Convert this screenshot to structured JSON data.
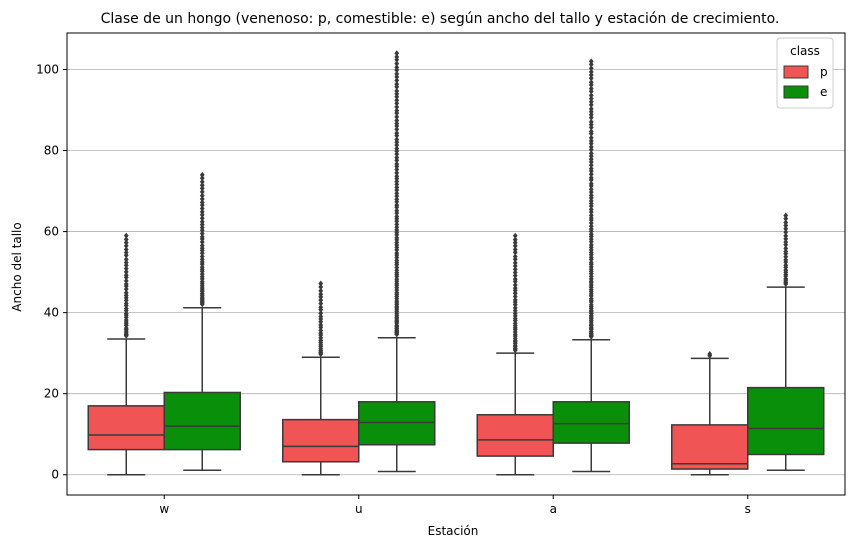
{
  "chart_data": {
    "type": "box",
    "title": "Clase de un hongo (venenoso: p, comestible: e) según ancho del tallo y estación de crecimiento.",
    "xlabel": "Estación",
    "ylabel": "Ancho del tallo",
    "categories": [
      "w",
      "u",
      "a",
      "s"
    ],
    "ylim": [
      -5,
      109
    ],
    "yticks": [
      0,
      20,
      40,
      60,
      80,
      100
    ],
    "grid": "horizontal",
    "legend": {
      "title": "class",
      "position": "top-right"
    },
    "series": [
      {
        "name": "p",
        "color": "#f05454",
        "boxes": [
          {
            "whisker_low": 0,
            "q1": 6.2,
            "median": 9.8,
            "q3": 17,
            "whisker_high": 33.5,
            "outlier_max": 59
          },
          {
            "whisker_low": 0,
            "q1": 3.2,
            "median": 7,
            "q3": 13.6,
            "whisker_high": 29,
            "outlier_max": 47.2
          },
          {
            "whisker_low": 0,
            "q1": 4.6,
            "median": 8.6,
            "q3": 14.8,
            "whisker_high": 30,
            "outlier_max": 59
          },
          {
            "whisker_low": 0,
            "q1": 1.4,
            "median": 2.7,
            "q3": 12.3,
            "whisker_high": 28.7,
            "outlier_max": 29.8
          }
        ]
      },
      {
        "name": "e",
        "color": "#0a8f0a",
        "boxes": [
          {
            "whisker_low": 1.1,
            "q1": 6.2,
            "median": 12,
            "q3": 20.3,
            "whisker_high": 41.2,
            "outlier_max": 74
          },
          {
            "whisker_low": 0.8,
            "q1": 7.4,
            "median": 12.9,
            "q3": 18,
            "whisker_high": 33.8,
            "outlier_max": 104
          },
          {
            "whisker_low": 0.8,
            "q1": 7.8,
            "median": 12.6,
            "q3": 18,
            "whisker_high": 33.3,
            "outlier_max": 102
          },
          {
            "whisker_low": 1.1,
            "q1": 5,
            "median": 11.4,
            "q3": 21.5,
            "whisker_high": 46.3,
            "outlier_max": 64
          }
        ]
      }
    ]
  }
}
